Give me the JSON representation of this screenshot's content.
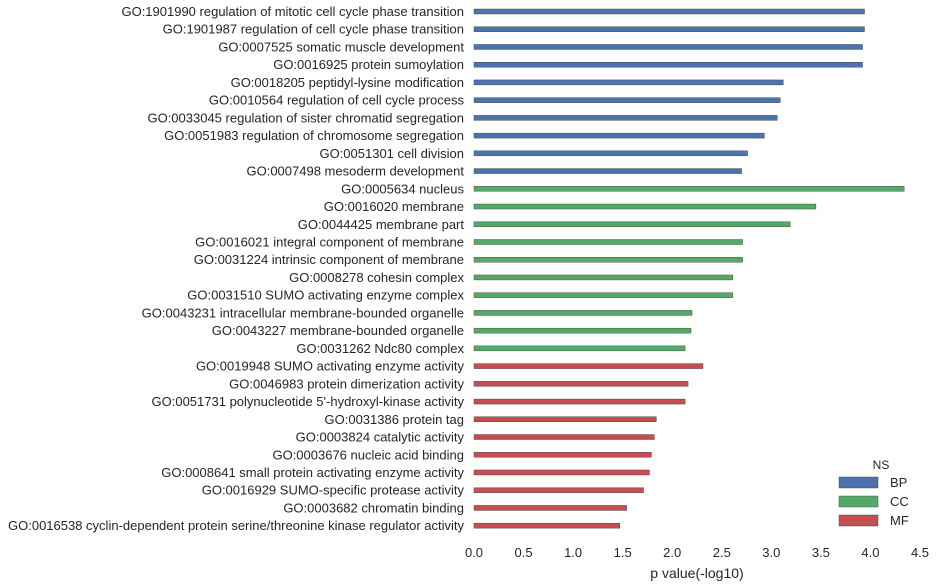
{
  "chart_data": {
    "type": "bar",
    "orientation": "horizontal",
    "xlabel": "p value(-log10)",
    "ylabel": "",
    "xlim": [
      0.0,
      4.5
    ],
    "xticks": [
      "0.0",
      "0.5",
      "1.0",
      "1.5",
      "2.0",
      "2.5",
      "3.0",
      "3.5",
      "4.0",
      "4.5"
    ],
    "grid": false,
    "legend": {
      "title": "NS",
      "placement": "bottom-right",
      "entries": [
        {
          "name": "BP",
          "color": "#4c72b0"
        },
        {
          "name": "CC",
          "color": "#55a868"
        },
        {
          "name": "MF",
          "color": "#c44e52"
        }
      ]
    },
    "categories": [
      {
        "label": "GO:1901990 regulation of mitotic cell cycle phase transition",
        "value": 3.94,
        "ns": "BP"
      },
      {
        "label": "GO:1901987 regulation of cell cycle phase transition",
        "value": 3.94,
        "ns": "BP"
      },
      {
        "label": "GO:0007525 somatic muscle development",
        "value": 3.92,
        "ns": "BP"
      },
      {
        "label": "GO:0016925 protein sumoylation",
        "value": 3.92,
        "ns": "BP"
      },
      {
        "label": "GO:0018205 peptidyl-lysine modification",
        "value": 3.12,
        "ns": "BP"
      },
      {
        "label": "GO:0010564 regulation of cell cycle process",
        "value": 3.09,
        "ns": "BP"
      },
      {
        "label": "GO:0033045 regulation of sister chromatid segregation",
        "value": 3.06,
        "ns": "BP"
      },
      {
        "label": "GO:0051983 regulation of chromosome segregation",
        "value": 2.93,
        "ns": "BP"
      },
      {
        "label": "GO:0051301 cell division",
        "value": 2.76,
        "ns": "BP"
      },
      {
        "label": "GO:0007498 mesoderm development",
        "value": 2.7,
        "ns": "BP"
      },
      {
        "label": "GO:0005634 nucleus",
        "value": 4.34,
        "ns": "CC"
      },
      {
        "label": "GO:0016020 membrane",
        "value": 3.45,
        "ns": "CC"
      },
      {
        "label": "GO:0044425 membrane part",
        "value": 3.19,
        "ns": "CC"
      },
      {
        "label": "GO:0016021 integral component of membrane",
        "value": 2.71,
        "ns": "CC"
      },
      {
        "label": "GO:0031224 intrinsic component of membrane",
        "value": 2.71,
        "ns": "CC"
      },
      {
        "label": "GO:0008278 cohesin complex",
        "value": 2.61,
        "ns": "CC"
      },
      {
        "label": "GO:0031510 SUMO activating enzyme complex",
        "value": 2.61,
        "ns": "CC"
      },
      {
        "label": "GO:0043231 intracellular membrane-bounded organelle",
        "value": 2.2,
        "ns": "CC"
      },
      {
        "label": "GO:0043227 membrane-bounded organelle",
        "value": 2.19,
        "ns": "CC"
      },
      {
        "label": "GO:0031262 Ndc80 complex",
        "value": 2.13,
        "ns": "CC"
      },
      {
        "label": "GO:0019948 SUMO activating enzyme activity",
        "value": 2.31,
        "ns": "MF"
      },
      {
        "label": "GO:0046983 protein dimerization activity",
        "value": 2.16,
        "ns": "MF"
      },
      {
        "label": "GO:0051731 polynucleotide 5'-hydroxyl-kinase activity",
        "value": 2.13,
        "ns": "MF"
      },
      {
        "label": "GO:0031386 protein tag",
        "value": 1.84,
        "ns": "MF"
      },
      {
        "label": "GO:0003824 catalytic activity",
        "value": 1.82,
        "ns": "MF"
      },
      {
        "label": "GO:0003676 nucleic acid binding",
        "value": 1.79,
        "ns": "MF"
      },
      {
        "label": "GO:0008641 small protein activating enzyme activity",
        "value": 1.77,
        "ns": "MF"
      },
      {
        "label": "GO:0016929 SUMO-specific protease activity",
        "value": 1.71,
        "ns": "MF"
      },
      {
        "label": "GO:0003682 chromatin binding",
        "value": 1.54,
        "ns": "MF"
      },
      {
        "label": "GO:0016538 cyclin-dependent protein serine/threonine kinase regulator activity",
        "value": 1.47,
        "ns": "MF"
      }
    ]
  }
}
